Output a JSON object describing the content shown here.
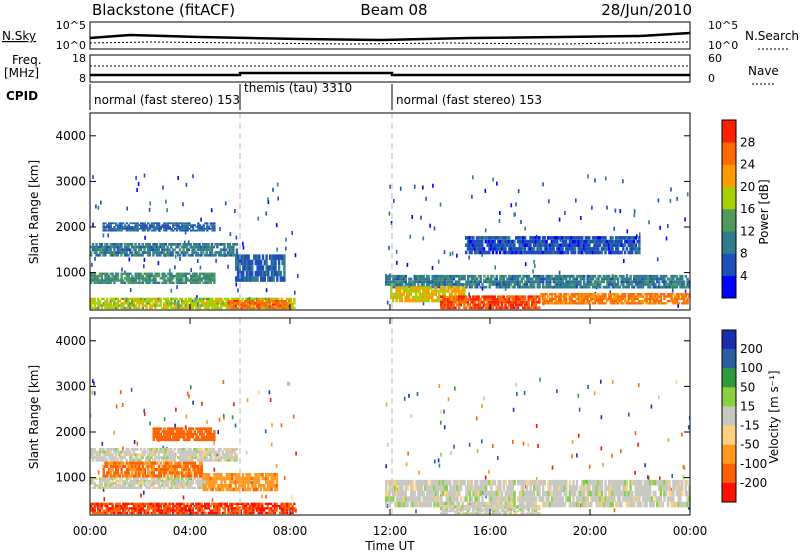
{
  "header": {
    "station": "Blackstone (fitACF)",
    "beam": "Beam 08",
    "date": "28/Jun/2010"
  },
  "summary": {
    "nsky_label": "N.Sky",
    "nsky_ticks": [
      "10^5",
      "10^0"
    ],
    "nsearch_label": "N.Search",
    "nsearch_ticks": [
      "10^5",
      "10^0"
    ],
    "freq_label_1": "Freq.",
    "freq_label_2": "[MHz]",
    "freq_ticks": [
      "18",
      "8"
    ],
    "nave_label": "Nave",
    "nave_ticks": [
      "60",
      "0"
    ],
    "cpid_label": "CPID",
    "cpid_segments": [
      {
        "label": "normal (fast stereo) 153",
        "start": "00:00",
        "end": "06:00"
      },
      {
        "label": "themis (tau) 3310",
        "start": "06:00",
        "end": "12:00"
      },
      {
        "label": "normal (fast stereo) 153",
        "start": "12:00",
        "end": "24:00"
      }
    ]
  },
  "axes": {
    "xlabel": "Time UT",
    "x_ticks": [
      "00:00",
      "04:00",
      "08:00",
      "12:00",
      "16:00",
      "20:00",
      "00:00"
    ],
    "ylabel": "Slant Range [km]",
    "y_ticks": [
      "1000",
      "2000",
      "3000",
      "4000"
    ]
  },
  "power_colorbar": {
    "label": "Power [dB]",
    "ticks": [
      "4",
      "8",
      "12",
      "16",
      "20",
      "24",
      "28"
    ],
    "colors": [
      "#0000ff",
      "#1e4fb8",
      "#2f7d8c",
      "#4f9a5a",
      "#a6d000",
      "#ff9a00",
      "#ff6a00",
      "#ff2000"
    ]
  },
  "velocity_colorbar": {
    "label": "Velocity [m s⁻¹]",
    "ticks": [
      "200",
      "100",
      "50",
      "15",
      "-15",
      "-50",
      "-100",
      "-200"
    ],
    "colors": [
      "#1a2fb0",
      "#2a5fa0",
      "#2f9a3a",
      "#8ad040",
      "#c8c8c0",
      "#ffd080",
      "#ff9a20",
      "#ff6000",
      "#ff1000"
    ]
  },
  "chart_data": [
    {
      "type": "heatmap",
      "name": "power",
      "x_range": [
        "00:00",
        "24:00"
      ],
      "ylim": [
        180,
        4500
      ],
      "value_range": [
        0,
        30
      ],
      "features": [
        {
          "t0": 0.0,
          "t1": 5.9,
          "r0": 1350,
          "r1": 1650,
          "value": 10
        },
        {
          "t0": 0.5,
          "t1": 5.0,
          "r0": 1900,
          "r1": 2100,
          "value": 7
        },
        {
          "t0": 0.0,
          "t1": 5.0,
          "r0": 750,
          "r1": 1000,
          "value": 12
        },
        {
          "t0": 5.8,
          "t1": 7.8,
          "r0": 800,
          "r1": 1400,
          "value": 7
        },
        {
          "t0": 0.0,
          "t1": 8.2,
          "r0": 200,
          "r1": 450,
          "value": 18
        },
        {
          "t0": 5.5,
          "t1": 8.0,
          "r0": 200,
          "r1": 400,
          "value": 26
        },
        {
          "t0": 11.8,
          "t1": 24.0,
          "r0": 650,
          "r1": 950,
          "value": 10
        },
        {
          "t0": 12.0,
          "t1": 15.0,
          "r0": 350,
          "r1": 700,
          "value": 20
        },
        {
          "t0": 14.0,
          "t1": 18.0,
          "r0": 200,
          "r1": 500,
          "value": 28
        },
        {
          "t0": 18.0,
          "t1": 24.0,
          "r0": 300,
          "r1": 550,
          "value": 25
        },
        {
          "t0": 15.0,
          "t1": 22.0,
          "r0": 1400,
          "r1": 1800,
          "value": 6
        }
      ]
    },
    {
      "type": "heatmap",
      "name": "velocity",
      "x_range": [
        "00:00",
        "24:00"
      ],
      "ylim": [
        180,
        4500
      ],
      "value_range": [
        -200,
        200
      ],
      "features": [
        {
          "t0": 0.0,
          "t1": 5.9,
          "r0": 1350,
          "r1": 1650,
          "value": 0
        },
        {
          "t0": 2.5,
          "t1": 5.0,
          "r0": 1800,
          "r1": 2100,
          "value": -120
        },
        {
          "t0": 0.5,
          "t1": 4.5,
          "r0": 1000,
          "r1": 1350,
          "value": -80
        },
        {
          "t0": 0.0,
          "t1": 5.0,
          "r0": 750,
          "r1": 1000,
          "value": 0
        },
        {
          "t0": 4.5,
          "t1": 7.5,
          "r0": 700,
          "r1": 1100,
          "value": -60
        },
        {
          "t0": 0.0,
          "t1": 8.2,
          "r0": 200,
          "r1": 450,
          "value": -150
        },
        {
          "t0": 11.8,
          "t1": 24.0,
          "r0": 350,
          "r1": 950,
          "value": 0
        },
        {
          "t0": 14.0,
          "t1": 18.0,
          "r0": 200,
          "r1": 400,
          "value": 0
        }
      ]
    }
  ]
}
